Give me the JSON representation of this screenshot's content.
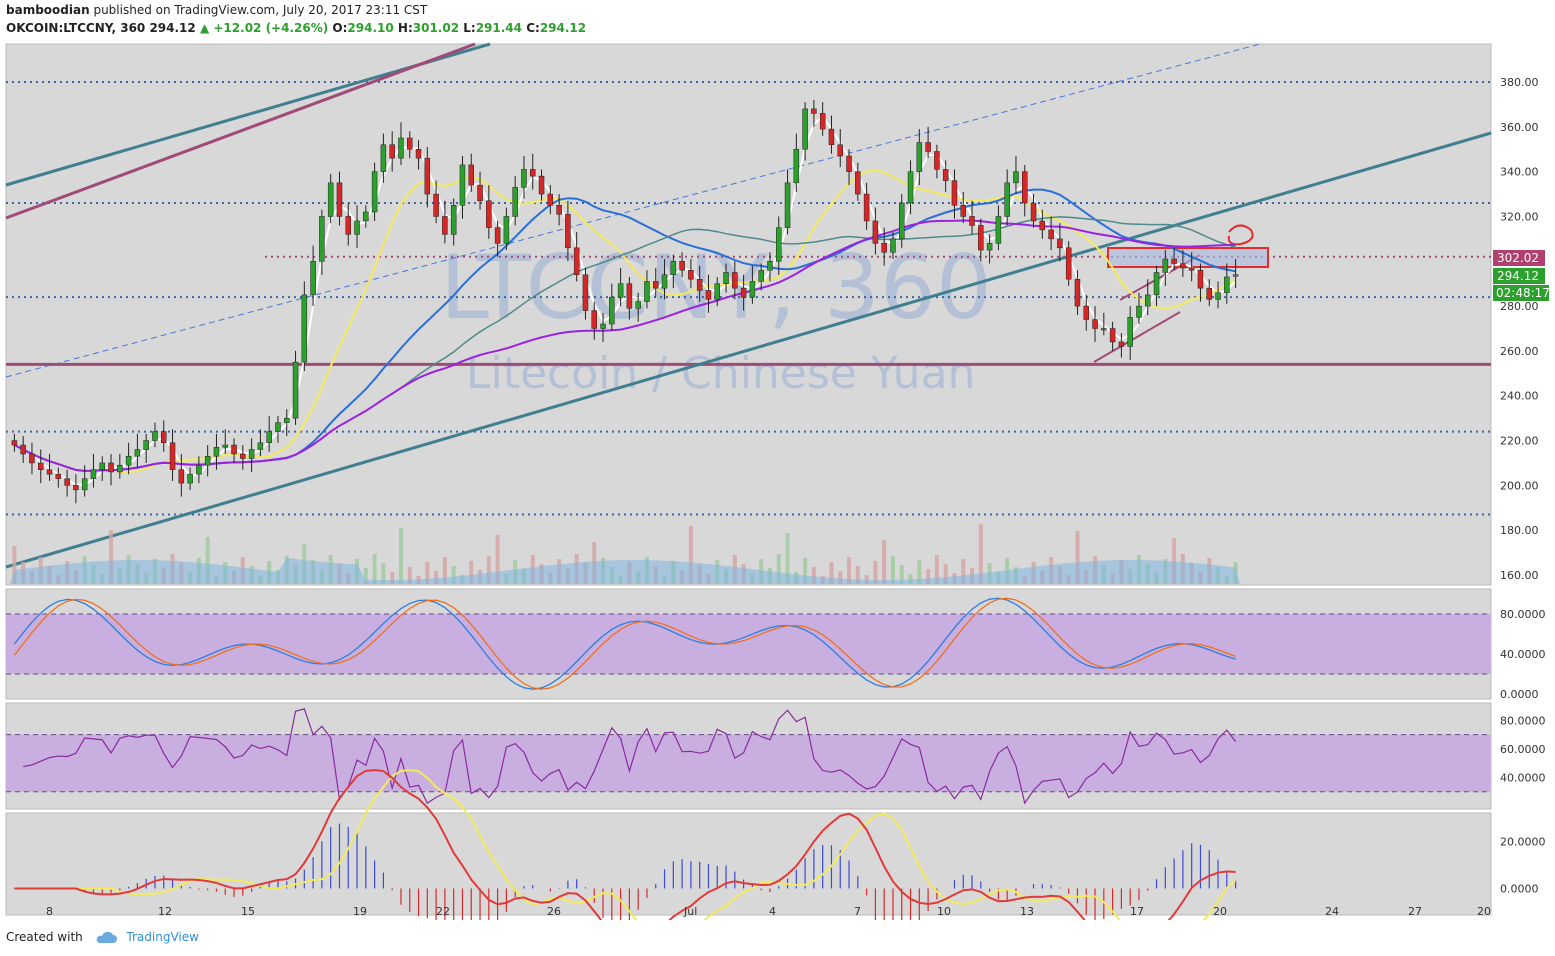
{
  "header": {
    "publisher": "bamboodian",
    "published_text": "published on TradingView.com, July 20, 2017 23:11 CST",
    "symbol_line": "OKCOIN:LTCCNY, 360",
    "last": "294.12",
    "change": "+12.02 (+4.26%)",
    "o_label": "O:",
    "o": "294.10",
    "h_label": "H:",
    "h": "301.02",
    "l_label": "L:",
    "l": "291.44",
    "c_label": "C:",
    "c": "294.12"
  },
  "footer": {
    "created_with": "Created with",
    "brand": "TradingView"
  },
  "watermark": {
    "ticker": "LTCCNY, 360",
    "name": "Litecoin / Chinese Yuan"
  },
  "colors": {
    "up": "#2ca02c",
    "down": "#d62728",
    "panel_bg": "#d8d8d8",
    "band": "#c9aee0",
    "accent": "#e52b2b"
  },
  "chart_data": [
    {
      "type": "candlestick",
      "yaxis_ticks": [
        "380.00",
        "360.00",
        "340.00",
        "320.00",
        "300.00",
        "280.00",
        "260.00",
        "240.00",
        "220.00",
        "200.00",
        "180.00",
        "160.00"
      ],
      "ylim": [
        156,
        384
      ],
      "price_labels": [
        "302.02",
        "294.12",
        "02:48:17"
      ],
      "xaxis_ticks": [
        "8",
        "12",
        "15",
        "19",
        "22",
        "26",
        "Jul",
        "4",
        "7",
        "10",
        "13",
        "17",
        "20",
        "24",
        "27",
        "20"
      ],
      "close": [
        218,
        214,
        210,
        207,
        205,
        203,
        200,
        198,
        203,
        207,
        210,
        206,
        209,
        213,
        216,
        220,
        224,
        219,
        207,
        201,
        205,
        209,
        213,
        217,
        218,
        214,
        212,
        216,
        219,
        224,
        228,
        230,
        255,
        285,
        300,
        320,
        335,
        320,
        312,
        318,
        322,
        340,
        352,
        346,
        355,
        350,
        346,
        330,
        320,
        312,
        325,
        343,
        334,
        327,
        315,
        308,
        320,
        333,
        341,
        338,
        330,
        325,
        321,
        306,
        294,
        278,
        270,
        272,
        284,
        290,
        279,
        282,
        291,
        288,
        294,
        300,
        296,
        292,
        287,
        283,
        290,
        295,
        288,
        284,
        291,
        296,
        300,
        315,
        335,
        350,
        368,
        366,
        359,
        352,
        347,
        340,
        330,
        318,
        308,
        304,
        310,
        326,
        340,
        353,
        349,
        341,
        336,
        325,
        320,
        316,
        305,
        308,
        320,
        335,
        340,
        326,
        318,
        314,
        310,
        306,
        292,
        280,
        274,
        270,
        270,
        264,
        262,
        275,
        280,
        285,
        295,
        301,
        299,
        297,
        296,
        288,
        283,
        286,
        293,
        294
      ],
      "open": [
        220,
        218,
        214,
        210,
        207,
        205,
        203,
        200,
        198,
        203,
        207,
        210,
        206,
        209,
        213,
        216,
        220,
        224,
        219,
        207,
        201,
        205,
        209,
        213,
        217,
        218,
        214,
        212,
        216,
        219,
        224,
        228,
        230,
        255,
        285,
        300,
        320,
        335,
        320,
        312,
        318,
        322,
        340,
        352,
        346,
        355,
        350,
        346,
        330,
        320,
        312,
        325,
        343,
        334,
        327,
        315,
        308,
        320,
        333,
        341,
        338,
        330,
        325,
        321,
        306,
        294,
        278,
        270,
        272,
        284,
        290,
        279,
        282,
        291,
        288,
        294,
        300,
        296,
        292,
        287,
        283,
        290,
        295,
        288,
        284,
        291,
        296,
        300,
        315,
        335,
        350,
        368,
        366,
        359,
        352,
        347,
        340,
        330,
        318,
        308,
        304,
        310,
        326,
        340,
        353,
        349,
        341,
        336,
        325,
        320,
        316,
        305,
        308,
        320,
        335,
        340,
        326,
        318,
        314,
        310,
        306,
        292,
        280,
        274,
        270,
        270,
        264,
        262,
        275,
        280,
        285,
        295,
        301,
        299,
        297,
        296,
        288,
        283,
        286,
        294
      ],
      "levels": [
        380,
        326,
        302,
        284,
        254,
        224,
        187
      ]
    },
    {
      "type": "line",
      "name_hint": "stochastic",
      "ylim": [
        0,
        100
      ],
      "yaxis_ticks": [
        "80.0000",
        "40.0000",
        "0.0000"
      ],
      "band": [
        20,
        80
      ]
    },
    {
      "type": "line",
      "name_hint": "rsi",
      "ylim": [
        20,
        90
      ],
      "yaxis_ticks": [
        "80.0000",
        "60.0000",
        "40.0000"
      ],
      "band": [
        30,
        70
      ]
    },
    {
      "type": "line",
      "name_hint": "macd",
      "ylim": [
        -10,
        30
      ],
      "yaxis_ticks": [
        "20.0000",
        "0.0000"
      ]
    }
  ]
}
